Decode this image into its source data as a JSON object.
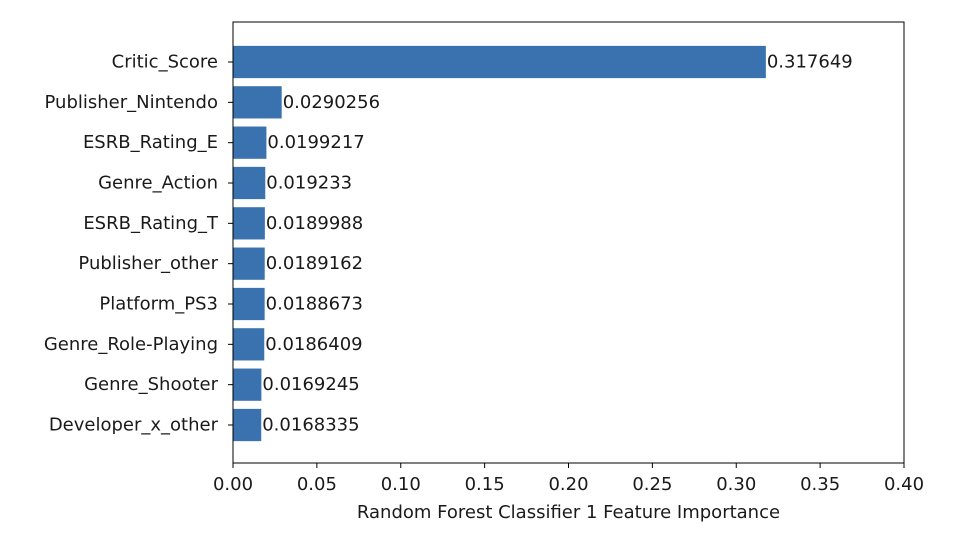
{
  "chart_data": {
    "type": "bar",
    "orientation": "horizontal",
    "categories": [
      "Critic_Score",
      "Publisher_Nintendo",
      "ESRB_Rating_E",
      "Genre_Action",
      "ESRB_Rating_T",
      "Publisher_other",
      "Platform_PS3",
      "Genre_Role-Playing",
      "Genre_Shooter",
      "Developer_x_other"
    ],
    "values": [
      0.317649,
      0.0290256,
      0.0199217,
      0.019233,
      0.0189988,
      0.0189162,
      0.0188673,
      0.0186409,
      0.0169245,
      0.0168335
    ],
    "data_labels": [
      "0.317649",
      "0.0290256",
      "0.0199217",
      "0.019233",
      "0.0189988",
      "0.0189162",
      "0.0188673",
      "0.0186409",
      "0.0169245",
      "0.0168335"
    ],
    "xlabel": "Random Forest Classifier 1 Feature Importance",
    "ylabel": "",
    "title": "",
    "xlim": [
      0,
      0.4
    ],
    "xticks": [
      0.0,
      0.05,
      0.1,
      0.15,
      0.2,
      0.25,
      0.3,
      0.35,
      0.4
    ],
    "xtick_labels": [
      "0.00",
      "0.05",
      "0.10",
      "0.15",
      "0.20",
      "0.25",
      "0.30",
      "0.35",
      "0.40"
    ],
    "grid": false,
    "bar_color": "#3a72b0"
  }
}
